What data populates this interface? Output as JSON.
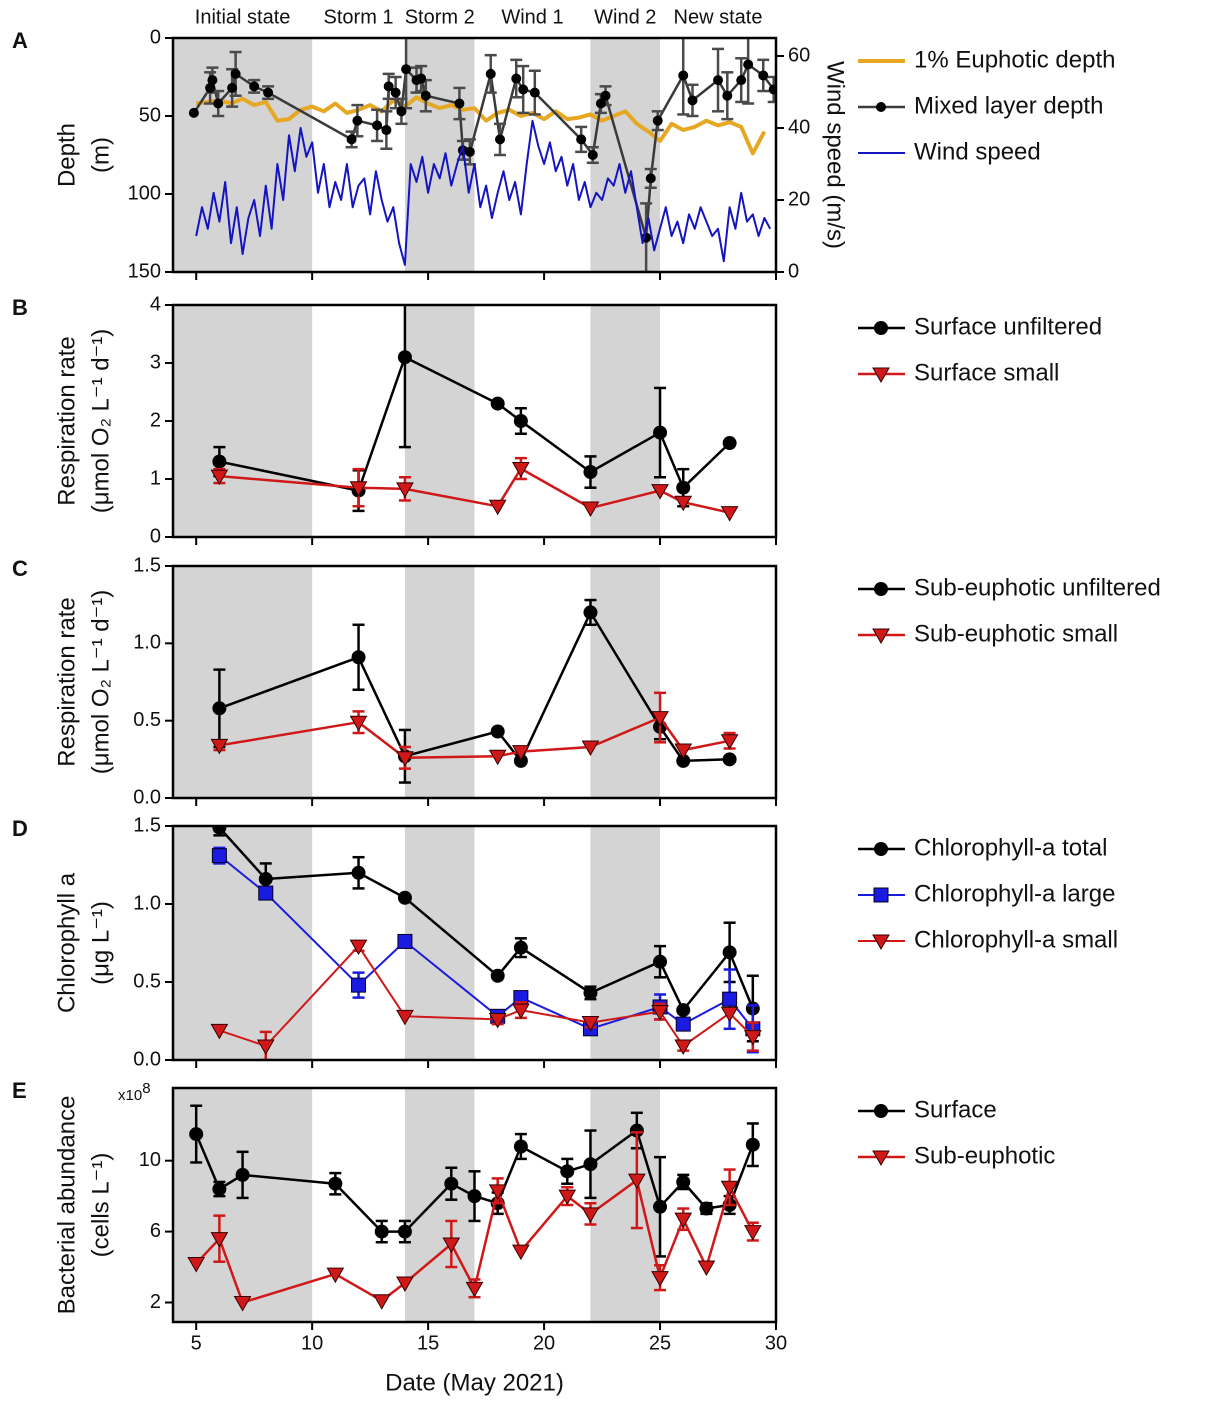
{
  "chart_data": [
    {
      "type": "line",
      "panel_label": "A",
      "periods": [
        {
          "label": "Initial state",
          "start": 4,
          "end": 10,
          "shaded": true
        },
        {
          "label": "Storm 1",
          "start": 10,
          "end": 14,
          "shaded": false
        },
        {
          "label": "Storm 2",
          "start": 14,
          "end": 17,
          "shaded": true
        },
        {
          "label": "Wind 1",
          "start": 17,
          "end": 22,
          "shaded": false
        },
        {
          "label": "Wind 2",
          "start": 22,
          "end": 25,
          "shaded": true
        },
        {
          "label": "New state",
          "start": 25,
          "end": 30,
          "shaded": false
        }
      ],
      "ylabel": [
        "Depth",
        "(m)"
      ],
      "y2label": "Wind speed (m/s)",
      "xlim": [
        4,
        30
      ],
      "xticks": [
        5,
        10,
        15,
        20,
        25,
        30
      ],
      "xtick_labels": false,
      "ylim": [
        0,
        150
      ],
      "y_inverted": true,
      "yticks": [
        0,
        50,
        100,
        150
      ],
      "y2lim": [
        0,
        65
      ],
      "y2ticks": [
        0,
        20,
        40,
        60
      ],
      "legend": "right",
      "series": [
        {
          "name": "1% Euphotic depth",
          "color": "#e6a823",
          "marker": "none",
          "line_width": 4,
          "x": [
            5,
            5.5,
            6,
            6.5,
            7,
            7.5,
            8,
            8.5,
            9,
            9.5,
            10,
            10.5,
            11,
            11.5,
            12,
            12.5,
            13,
            13.5,
            14,
            14.5,
            15,
            15.5,
            16,
            16.5,
            17,
            17.5,
            18,
            18.5,
            19,
            19.5,
            20,
            20.5,
            21,
            21.5,
            22,
            22.5,
            23,
            23.5,
            24,
            24.5,
            25,
            25.5,
            26,
            26.5,
            27,
            27.5,
            28,
            28.5,
            29,
            29.5
          ],
          "values": [
            42,
            41,
            40,
            42,
            39,
            43,
            41,
            53,
            52,
            46,
            44,
            47,
            42,
            48,
            46,
            43,
            47,
            40,
            44,
            38,
            42,
            45,
            43,
            46,
            45,
            53,
            48,
            46,
            50,
            48,
            52,
            47,
            52,
            51,
            49,
            53,
            50,
            47,
            55,
            60,
            66,
            55,
            59,
            57,
            53,
            56,
            54,
            57,
            74,
            60
          ]
        },
        {
          "name": "Mixed layer depth",
          "color": "#3a3a3a",
          "marker": "circle_small",
          "line_width": 2.5,
          "x": [
            4.9,
            5.6,
            5.7,
            5.95,
            6.55,
            6.7,
            7.5,
            8.1,
            11.7,
            11.95,
            12.8,
            13.2,
            13.3,
            13.6,
            13.85,
            14.05,
            14.5,
            14.7,
            14.9,
            16.35,
            16.5,
            16.8,
            17.7,
            18.1,
            18.8,
            19.1,
            19.6,
            21.6,
            22.1,
            22.45,
            22.65,
            24.4,
            24.6,
            24.9,
            26.0,
            26.4,
            27.5,
            27.9,
            28.5,
            28.8,
            29.45,
            29.9
          ],
          "values": [
            48,
            32,
            27,
            42,
            32,
            23,
            31,
            35,
            65,
            53,
            56,
            59,
            31,
            35,
            47,
            20,
            27,
            26,
            37,
            42,
            72,
            73,
            23,
            65,
            26,
            33,
            35,
            65,
            75,
            42,
            37,
            128,
            90,
            53,
            24,
            40,
            27,
            37,
            27,
            17,
            24,
            33
          ],
          "errors": [
            0,
            10,
            8,
            8,
            12,
            14,
            4,
            4,
            5,
            10,
            10,
            12,
            8,
            10,
            8,
            25,
            8,
            8,
            10,
            10,
            6,
            8,
            12,
            10,
            12,
            15,
            14,
            8,
            5,
            6,
            6,
            22,
            6,
            6,
            25,
            10,
            20,
            15,
            14,
            25,
            10,
            8
          ]
        },
        {
          "name": "Wind speed",
          "color": "#1414c0",
          "marker": "none",
          "line_width": 2,
          "axis": "y2",
          "x": [
            5,
            5.25,
            5.5,
            5.75,
            6,
            6.25,
            6.5,
            6.75,
            7,
            7.25,
            7.5,
            7.75,
            8,
            8.25,
            8.5,
            8.75,
            9,
            9.25,
            9.5,
            9.75,
            10,
            10.25,
            10.5,
            10.75,
            11,
            11.25,
            11.5,
            11.75,
            12,
            12.25,
            12.5,
            12.75,
            13,
            13.25,
            13.5,
            13.75,
            14,
            14.25,
            14.5,
            14.75,
            15,
            15.25,
            15.5,
            15.75,
            16,
            16.25,
            16.5,
            16.75,
            17,
            17.25,
            17.5,
            17.75,
            18,
            18.25,
            18.5,
            18.75,
            19,
            19.25,
            19.5,
            19.75,
            20,
            20.25,
            20.5,
            20.75,
            21,
            21.25,
            21.5,
            21.75,
            22,
            22.25,
            22.5,
            22.75,
            23,
            23.25,
            23.5,
            23.75,
            24,
            24.25,
            24.5,
            24.75,
            25,
            25.25,
            25.5,
            25.75,
            26,
            26.25,
            26.5,
            26.75,
            27,
            27.25,
            27.5,
            27.75,
            28,
            28.25,
            28.5,
            28.75,
            29,
            29.25,
            29.5,
            29.75
          ],
          "values": [
            10,
            18,
            12,
            22,
            14,
            25,
            8,
            18,
            5,
            15,
            20,
            10,
            24,
            12,
            30,
            20,
            38,
            28,
            40,
            32,
            36,
            22,
            30,
            18,
            25,
            20,
            30,
            18,
            24,
            26,
            16,
            28,
            20,
            14,
            18,
            8,
            2,
            30,
            25,
            32,
            22,
            30,
            26,
            33,
            24,
            30,
            35,
            22,
            30,
            18,
            24,
            15,
            22,
            28,
            20,
            25,
            16,
            30,
            42,
            35,
            30,
            36,
            28,
            32,
            24,
            30,
            20,
            25,
            18,
            22,
            20,
            26,
            24,
            30,
            22,
            28,
            18,
            8,
            15,
            6,
            12,
            18,
            10,
            14,
            8,
            16,
            12,
            18,
            14,
            10,
            12,
            3,
            18,
            12,
            22,
            14,
            16,
            10,
            15,
            12
          ]
        }
      ]
    },
    {
      "type": "line",
      "panel_label": "B",
      "ylabel": [
        "Respiration rate",
        "(μmol O₂ L⁻¹ d⁻¹)"
      ],
      "xlim": [
        4,
        30
      ],
      "xticks": [
        5,
        10,
        15,
        20,
        25,
        30
      ],
      "xtick_labels": false,
      "ylim": [
        0,
        4
      ],
      "yticks": [
        0,
        1,
        2,
        3,
        4
      ],
      "legend": "right",
      "series": [
        {
          "name": "Surface unfiltered",
          "color": "#000000",
          "marker": "circle",
          "line_width": 2.5,
          "x": [
            6,
            12,
            14,
            18,
            19,
            22,
            25,
            26,
            28
          ],
          "values": [
            1.3,
            0.8,
            3.1,
            2.3,
            2.0,
            1.12,
            1.8,
            0.85,
            1.62
          ],
          "errors": [
            0.25,
            0.35,
            1.55,
            0,
            0.22,
            0.27,
            0.77,
            0.32,
            0
          ]
        },
        {
          "name": "Surface small",
          "color": "#d01818",
          "marker": "triangle",
          "line_width": 2.5,
          "x": [
            6,
            12,
            14,
            18,
            19,
            22,
            25,
            26,
            28
          ],
          "values": [
            1.05,
            0.85,
            0.83,
            0.53,
            1.18,
            0.5,
            0.8,
            0.6,
            0.42
          ],
          "errors": [
            0.12,
            0.32,
            0.2,
            0,
            0.18,
            0,
            0,
            0,
            0
          ]
        }
      ]
    },
    {
      "type": "line",
      "panel_label": "C",
      "ylabel": [
        "Respiration rate",
        "(μmol O₂ L⁻¹ d⁻¹)"
      ],
      "xlim": [
        4,
        30
      ],
      "xticks": [
        5,
        10,
        15,
        20,
        25,
        30
      ],
      "xtick_labels": false,
      "ylim": [
        0,
        1.5
      ],
      "yticks": [
        {
          "value": 0,
          "label": "0.0"
        },
        0.5,
        {
          "value": 1,
          "label": "1.0"
        },
        1.5
      ],
      "legend": "right",
      "series": [
        {
          "name": "Sub-euphotic unfiltered",
          "color": "#000000",
          "marker": "circle",
          "line_width": 2.5,
          "x": [
            6,
            12,
            14,
            18,
            19,
            22,
            25,
            26,
            28
          ],
          "values": [
            0.58,
            0.91,
            0.27,
            0.43,
            0.24,
            1.2,
            0.46,
            0.24,
            0.25
          ],
          "errors": [
            0.25,
            0.21,
            0.17,
            0,
            0,
            0.08,
            0.08,
            0,
            0
          ]
        },
        {
          "name": "Sub-euphotic small",
          "color": "#d01818",
          "marker": "triangle",
          "line_width": 2.5,
          "x": [
            6,
            12,
            14,
            18,
            19,
            22,
            25,
            26,
            28
          ],
          "values": [
            0.34,
            0.49,
            0.26,
            0.27,
            0.3,
            0.33,
            0.52,
            0.31,
            0.37
          ],
          "errors": [
            0.03,
            0.07,
            0.07,
            0,
            0,
            0,
            0.16,
            0,
            0.05
          ]
        }
      ]
    },
    {
      "type": "line",
      "panel_label": "D",
      "ylabel": [
        "Chlorophyll a",
        "(μg L⁻¹)"
      ],
      "xlim": [
        4,
        30
      ],
      "xticks": [
        5,
        10,
        15,
        20,
        25,
        30
      ],
      "xtick_labels": false,
      "ylim": [
        0,
        1.5
      ],
      "yticks": [
        {
          "value": 0,
          "label": "0.0"
        },
        0.5,
        {
          "value": 1,
          "label": "1.0"
        },
        1.5
      ],
      "legend": "right",
      "series": [
        {
          "name": "Chlorophyll-a total",
          "color": "#000000",
          "marker": "circle",
          "line_width": 2.5,
          "x": [
            6,
            8,
            12,
            14,
            18,
            19,
            22,
            25,
            26,
            28,
            29
          ],
          "values": [
            1.49,
            1.16,
            1.2,
            1.04,
            0.54,
            0.72,
            0.43,
            0.63,
            0.32,
            0.69,
            0.33
          ],
          "errors": [
            0.05,
            0.1,
            0.1,
            0,
            0,
            0.06,
            0.04,
            0.1,
            0,
            0.19,
            0.21
          ]
        },
        {
          "name": "Chlorophyll-a large",
          "color": "#1a1ae0",
          "marker": "square",
          "line_width": 2,
          "x": [
            6,
            8,
            12,
            14,
            18,
            19,
            22,
            25,
            26,
            28,
            29
          ],
          "values": [
            1.31,
            1.07,
            0.48,
            0.76,
            0.28,
            0.4,
            0.2,
            0.34,
            0.23,
            0.39,
            0.2
          ],
          "errors": [
            0.05,
            0.03,
            0.08,
            0,
            0.02,
            0.02,
            0.03,
            0.08,
            0.03,
            0.19,
            0.15
          ]
        },
        {
          "name": "Chlorophyll-a small",
          "color": "#d01818",
          "marker": "triangle",
          "line_width": 2,
          "x": [
            6,
            8,
            12,
            14,
            18,
            19,
            22,
            25,
            26,
            28,
            29
          ],
          "values": [
            0.19,
            0.09,
            0.73,
            0.28,
            0.26,
            0.32,
            0.24,
            0.31,
            0.09,
            0.3,
            0.15
          ],
          "errors": [
            0,
            0.09,
            0.03,
            0,
            0.03,
            0.05,
            0.03,
            0.05,
            0.03,
            0,
            0.09
          ]
        }
      ]
    },
    {
      "type": "line",
      "panel_label": "E",
      "ylabel": [
        "Bacterial abundance",
        "(cells L⁻¹)"
      ],
      "y_multiplier": {
        "base": "x10",
        "exponent": "8"
      },
      "xlabel": "Date (May 2021)",
      "xlim": [
        4,
        30
      ],
      "xticks": [
        5,
        10,
        15,
        20,
        25,
        30
      ],
      "xtick_labels": true,
      "ylim": [
        0.9,
        14.1
      ],
      "yticks": [
        2,
        6,
        10
      ],
      "legend": "right",
      "series": [
        {
          "name": "Surface",
          "color": "#000000",
          "marker": "circle",
          "line_width": 2.5,
          "x": [
            5,
            6,
            7,
            11,
            13,
            14,
            16,
            17,
            18,
            19,
            21,
            22,
            24,
            25,
            26,
            27,
            28,
            29
          ],
          "values": [
            11.5,
            8.4,
            9.2,
            8.7,
            6.0,
            6.0,
            8.7,
            8.0,
            7.6,
            10.8,
            9.4,
            9.8,
            11.7,
            7.4,
            8.8,
            7.3,
            7.5,
            10.9
          ],
          "errors": [
            1.6,
            0.4,
            1.3,
            0.6,
            0.6,
            0.6,
            0.9,
            1.4,
            0.6,
            0.7,
            0.7,
            1.9,
            1.0,
            2.8,
            0.4,
            0.3,
            0.5,
            1.2
          ]
        },
        {
          "name": "Sub-euphotic",
          "color": "#d01818",
          "marker": "triangle",
          "line_width": 2.5,
          "x": [
            5,
            6,
            7,
            11,
            13,
            14,
            16,
            17,
            18,
            19,
            21,
            22,
            24,
            25,
            26,
            27,
            28,
            29
          ],
          "values": [
            4.2,
            5.6,
            2.0,
            3.6,
            2.1,
            3.1,
            5.3,
            2.8,
            8.3,
            4.9,
            8.0,
            7.0,
            8.9,
            3.4,
            6.7,
            4.0,
            8.5,
            6.0
          ],
          "errors": [
            0,
            1.3,
            0,
            0,
            0,
            0,
            1.3,
            0.5,
            0.7,
            0,
            0.5,
            0.6,
            2.7,
            0.7,
            0.6,
            0,
            1.0,
            0.5
          ]
        }
      ]
    }
  ]
}
